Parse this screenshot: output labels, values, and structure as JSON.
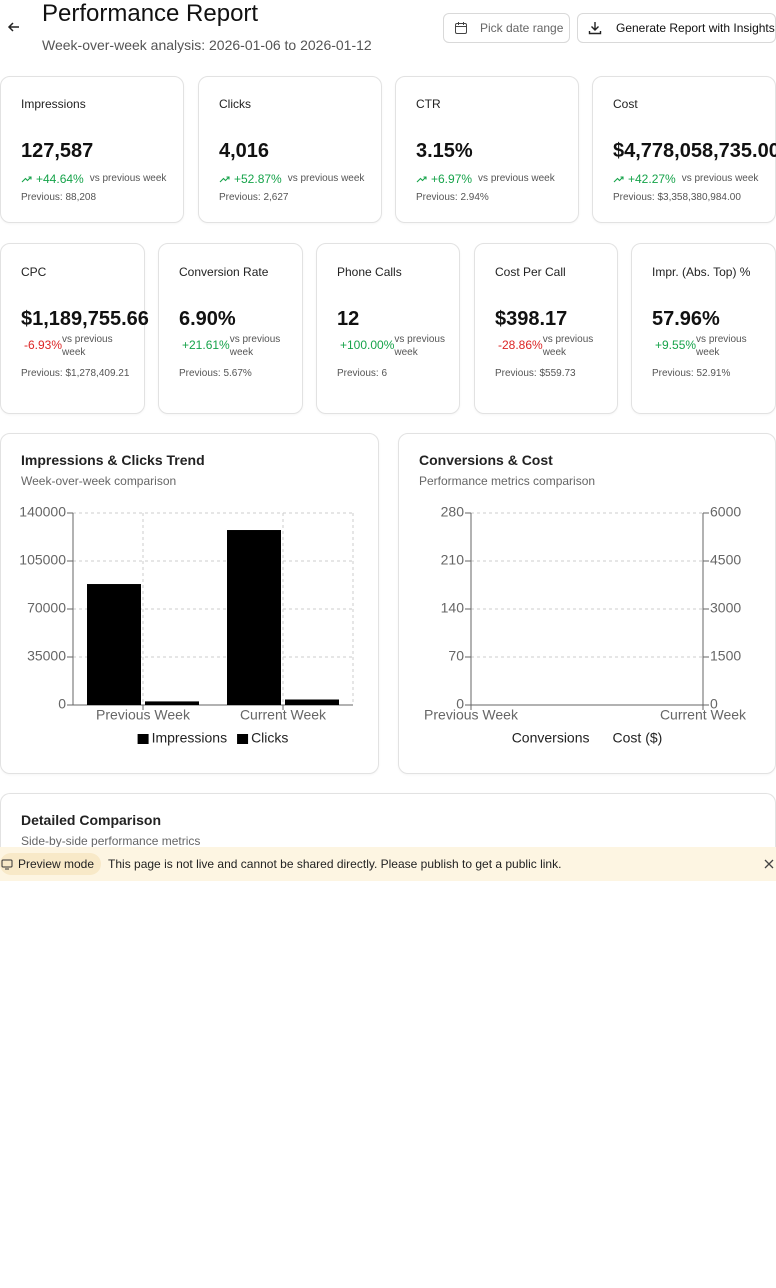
{
  "header": {
    "title": "Performance Report",
    "subtitle": "Week-over-week analysis: 2026-01-06 to 2026-01-12",
    "date_button": "Pick date range",
    "report_button": "Generate Report with Insights"
  },
  "comparison_text": "vs previous week",
  "kpis_top": [
    {
      "label": "Impressions",
      "value": "127,587",
      "change": "+44.64%",
      "previous": "Previous: 88,208"
    },
    {
      "label": "Clicks",
      "value": "4,016",
      "change": "+52.87%",
      "previous": "Previous: 2,627"
    },
    {
      "label": "CTR",
      "value": "3.15%",
      "change": "+6.97%",
      "previous": "Previous: 2.94%"
    },
    {
      "label": "Cost",
      "value": "$4,778,058,735.00",
      "change": "+42.27%",
      "previous": "Previous: $3,358,380,984.00"
    }
  ],
  "kpis_bottom": [
    {
      "label": "CPC",
      "value": "$1,189,755.66",
      "change": "-6.93%",
      "previous": "Previous: $1,278,409.21"
    },
    {
      "label": "Conversion Rate",
      "value": "6.90%",
      "change": "+21.61%",
      "previous": "Previous: 5.67%"
    },
    {
      "label": "Phone Calls",
      "value": "12",
      "change": "+100.00%",
      "previous": "Previous: 6"
    },
    {
      "label": "Cost Per Call",
      "value": "$398.17",
      "change": "-28.86%",
      "previous": "Previous: $559.73"
    },
    {
      "label": "Impr. (Abs. Top) %",
      "value": "57.96%",
      "change": "+9.55%",
      "previous": "Previous: 52.91%"
    }
  ],
  "chart_data": [
    {
      "type": "bar",
      "title": "Impressions & Clicks Trend",
      "subtitle": "Week-over-week comparison",
      "categories": [
        "Previous Week",
        "Current Week"
      ],
      "series": [
        {
          "name": "Impressions",
          "color": "#000000",
          "values": [
            88208,
            127587
          ]
        },
        {
          "name": "Clicks",
          "color": "#000000",
          "values": [
            2627,
            4016
          ]
        }
      ],
      "ylim": [
        0,
        140000
      ],
      "yticks": [
        0,
        35000,
        70000,
        105000,
        140000
      ],
      "grid": true
    },
    {
      "type": "line",
      "title": "Conversions & Cost",
      "subtitle": "Performance metrics comparison",
      "categories": [
        "Previous Week",
        "Current Week"
      ],
      "series": [
        {
          "name": "Conversions",
          "values": [
            null,
            null
          ]
        },
        {
          "name": "Cost ($)",
          "axis": "y2",
          "values": [
            null,
            null
          ]
        }
      ],
      "ylim": [
        0,
        280
      ],
      "yticks": [
        0,
        70,
        140,
        210,
        280
      ],
      "y2lim": [
        0,
        6000
      ],
      "y2ticks": [
        0,
        1500,
        3000,
        4500,
        6000
      ],
      "grid": true
    }
  ],
  "detail": {
    "title": "Detailed Comparison",
    "subtitle": "Side-by-side performance metrics"
  },
  "banner": {
    "badge": "Preview mode",
    "message": "This page is not live and cannot be shared directly. Please publish to get a public link."
  }
}
